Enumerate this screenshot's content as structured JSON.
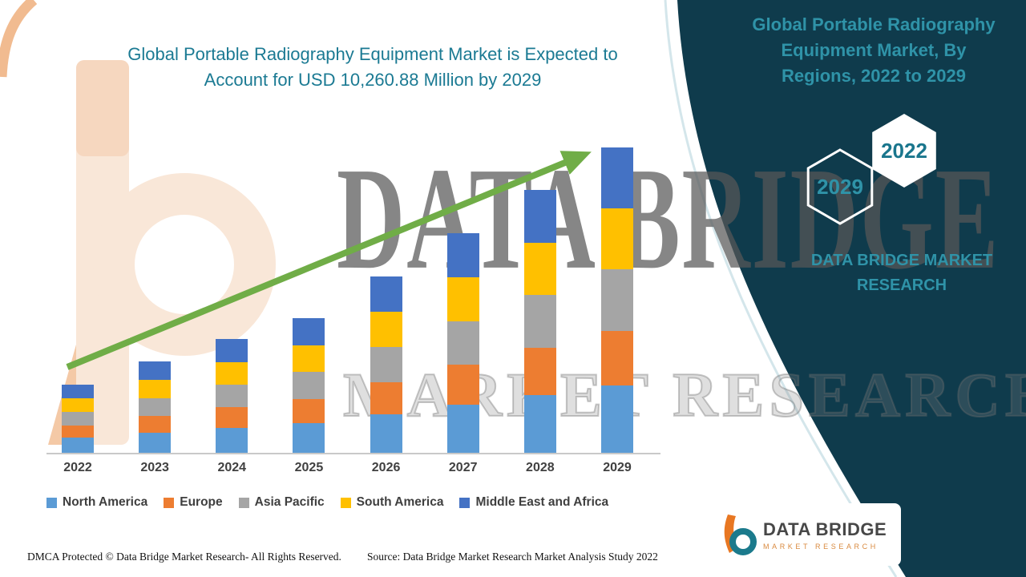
{
  "header": {
    "title_lines": [
      "Global Portable Radiography Equipment Market is Expected to",
      "Account for USD 10,260.88 Million by 2029"
    ]
  },
  "watermark": {
    "brand": "DATA BRIDGE",
    "sub": "MARKET RESEARCH"
  },
  "chart_data": {
    "type": "bar",
    "stacked": true,
    "title": "Global Portable Radiography Equipment Market is Expected to Account for USD 10,260.88 Million by 2029",
    "unit": "USD Million",
    "categories": [
      "2022",
      "2023",
      "2024",
      "2025",
      "2026",
      "2027",
      "2028",
      "2029"
    ],
    "series": [
      {
        "name": "North America",
        "color": "#5B9BD5",
        "values": [
          506,
          675,
          840,
          994,
          1302,
          1624,
          1943,
          2257
        ]
      },
      {
        "name": "Europe",
        "color": "#ED7D31",
        "values": [
          414,
          553,
          688,
          814,
          1066,
          1328,
          1589,
          1847
        ]
      },
      {
        "name": "Asia Pacific",
        "color": "#A5A5A5",
        "values": [
          460,
          614,
          764,
          904,
          1184,
          1476,
          1766,
          2052
        ]
      },
      {
        "name": "South America",
        "color": "#FFC000",
        "values": [
          460,
          614,
          764,
          904,
          1184,
          1476,
          1766,
          2052
        ]
      },
      {
        "name": "Middle East and Africa",
        "color": "#4472C4",
        "values": [
          460,
          614,
          764,
          904,
          1184,
          1476,
          1766,
          2052.88
        ]
      }
    ],
    "totals": [
      2300,
      3070,
      3820,
      4520,
      5920,
      7380,
      8830,
      10260.88
    ],
    "projected_total_2029": 10260.88,
    "ylim": [
      0,
      10260.88
    ],
    "grid": false,
    "legend_position": "bottom",
    "trend": "increasing"
  },
  "side_panel": {
    "heading_lines": [
      "Global Portable Radiography",
      "Equipment Market, By",
      "Regions, 2022 to 2029"
    ],
    "hexagons": [
      {
        "label": "2029"
      },
      {
        "label": "2022"
      }
    ],
    "brand_lines": [
      "DATA BRIDGE MARKET",
      "RESEARCH"
    ]
  },
  "footer_logo": {
    "name": "DATA BRIDGE",
    "subtitle": "MARKET RESEARCH"
  },
  "footer": {
    "dmca": "DMCA Protected © Data Bridge Market Research- All Rights Reserved.",
    "source": "Source: Data Bridge Market Research Market Analysis Study 2022"
  },
  "colors": {
    "accent_teal": "#1B7A93",
    "panel_teal_text": "#2F93A8",
    "panel_background": "#0F3B4C",
    "arrow_green": "#70AD47",
    "logo_orange": "#E87722"
  }
}
